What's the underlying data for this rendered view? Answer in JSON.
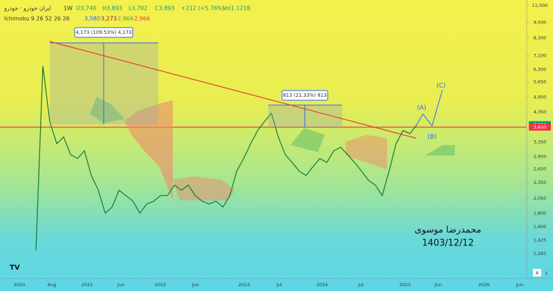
{
  "header": {
    "symbol": "ایران خودرو · خودرو",
    "interval": "1W",
    "ohlc": [
      "O3,740",
      "H3,893",
      "L3,702",
      "C3,893"
    ],
    "change": "+212 (+5.76%)",
    "volume": "Vol1.121B"
  },
  "indicator": {
    "name": "Ichimoku 9 26 52 26 26",
    "values": [
      "3,580",
      "3,273",
      "2,966",
      "2,966"
    ]
  },
  "price_axis": {
    "ticks": [
      {
        "value": 11000,
        "label": "11,000"
      },
      {
        "value": 9500,
        "label": "9,500"
      },
      {
        "value": 8300,
        "label": "8,300"
      },
      {
        "value": 7100,
        "label": "7,100"
      },
      {
        "value": 6300,
        "label": "6,300"
      },
      {
        "value": 5650,
        "label": "5,650"
      },
      {
        "value": 4950,
        "label": "4,950"
      },
      {
        "value": 4350,
        "label": "4,350"
      },
      {
        "value": 3350,
        "label": "3,350"
      },
      {
        "value": 2950,
        "label": "2,950"
      },
      {
        "value": 2650,
        "label": "2,650"
      },
      {
        "value": 2350,
        "label": "2,350"
      },
      {
        "value": 2050,
        "label": "2,050"
      },
      {
        "value": 1800,
        "label": "1,800"
      },
      {
        "value": 1600,
        "label": "1,600"
      },
      {
        "value": 1425,
        "label": "1,425"
      },
      {
        "value": 1265,
        "label": "1,265"
      }
    ]
  },
  "price_badges": [
    {
      "value": 3893,
      "label": "3,893",
      "color": "#089981"
    },
    {
      "value": 3810,
      "label": "3,810",
      "color": "#f23645"
    }
  ],
  "time_axis": {
    "labels": [
      "2020",
      "Aug",
      "2021",
      "Jun",
      "2022",
      "Jun",
      "2023",
      "Jul",
      "2024",
      "Jul",
      "2025",
      "Jun",
      "2026",
      "Jun"
    ]
  },
  "measures": [
    "4,173 (109.53%) 4,173",
    "813 (21.33%) 813"
  ],
  "waves": [
    "(A)",
    "(B)",
    "(C)"
  ],
  "signature": {
    "name": "محمدرضا موسوی",
    "date": "1403/12/12"
  },
  "axis_buttons": [
    "A",
    "L"
  ],
  "monthly_close": [
    1300,
    6500,
    4000,
    3300,
    3500,
    3000,
    2900,
    3100,
    2500,
    2200,
    1800,
    1900,
    2200,
    2100,
    2000,
    1800,
    1950,
    2000,
    2100,
    2100,
    2300,
    2200,
    2300,
    2100,
    2000,
    1950,
    2000,
    1900,
    2100,
    2600,
    2900,
    3300,
    3700,
    4000,
    4300,
    3500,
    3000,
    2800,
    2600,
    2500,
    2700,
    2900,
    2800,
    3100,
    3200,
    3000,
    2800,
    2600,
    2400,
    2300,
    2100,
    2600,
    3300,
    3700,
    3600,
    3893
  ]
}
